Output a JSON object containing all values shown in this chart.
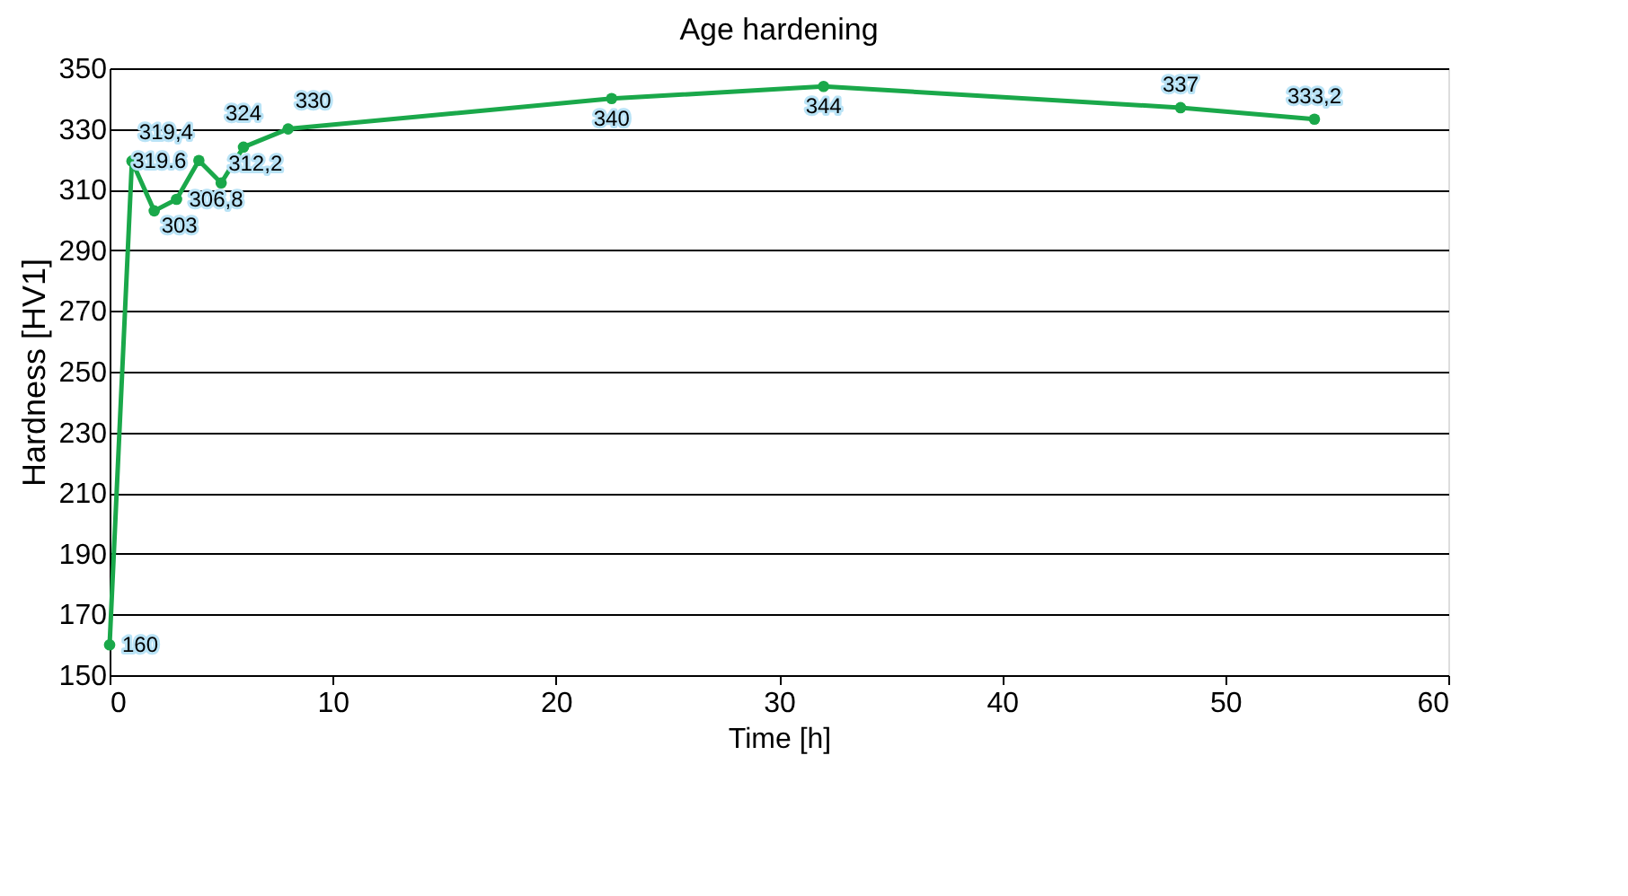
{
  "chart_data": {
    "type": "line",
    "title": "Age hardening",
    "xlabel": "Time [h]",
    "ylabel": "Hardness [HV1]",
    "x": [
      0,
      1,
      2,
      3,
      4,
      5,
      6,
      8,
      22.5,
      32,
      48,
      54
    ],
    "series": [
      {
        "color": "#1aa84a",
        "values": [
          160,
          319.4,
          303,
          306.8,
          319.6,
          312.2,
          324,
          330,
          340,
          344,
          337,
          333.2
        ],
        "value_labels": [
          "160",
          "319,4",
          "303",
          "306,8",
          "319.6",
          "312,2",
          "324",
          "330",
          "340",
          "344",
          "337",
          "333,2"
        ]
      }
    ],
    "xlim": [
      0,
      60
    ],
    "xticks": [
      0,
      10,
      20,
      30,
      40,
      50,
      60
    ],
    "ylim": [
      150,
      350
    ],
    "yticks": [
      150,
      170,
      190,
      210,
      230,
      250,
      270,
      290,
      310,
      330,
      350
    ],
    "grid": "y",
    "marker": "circle",
    "line_style": "solid",
    "legend": false
  }
}
